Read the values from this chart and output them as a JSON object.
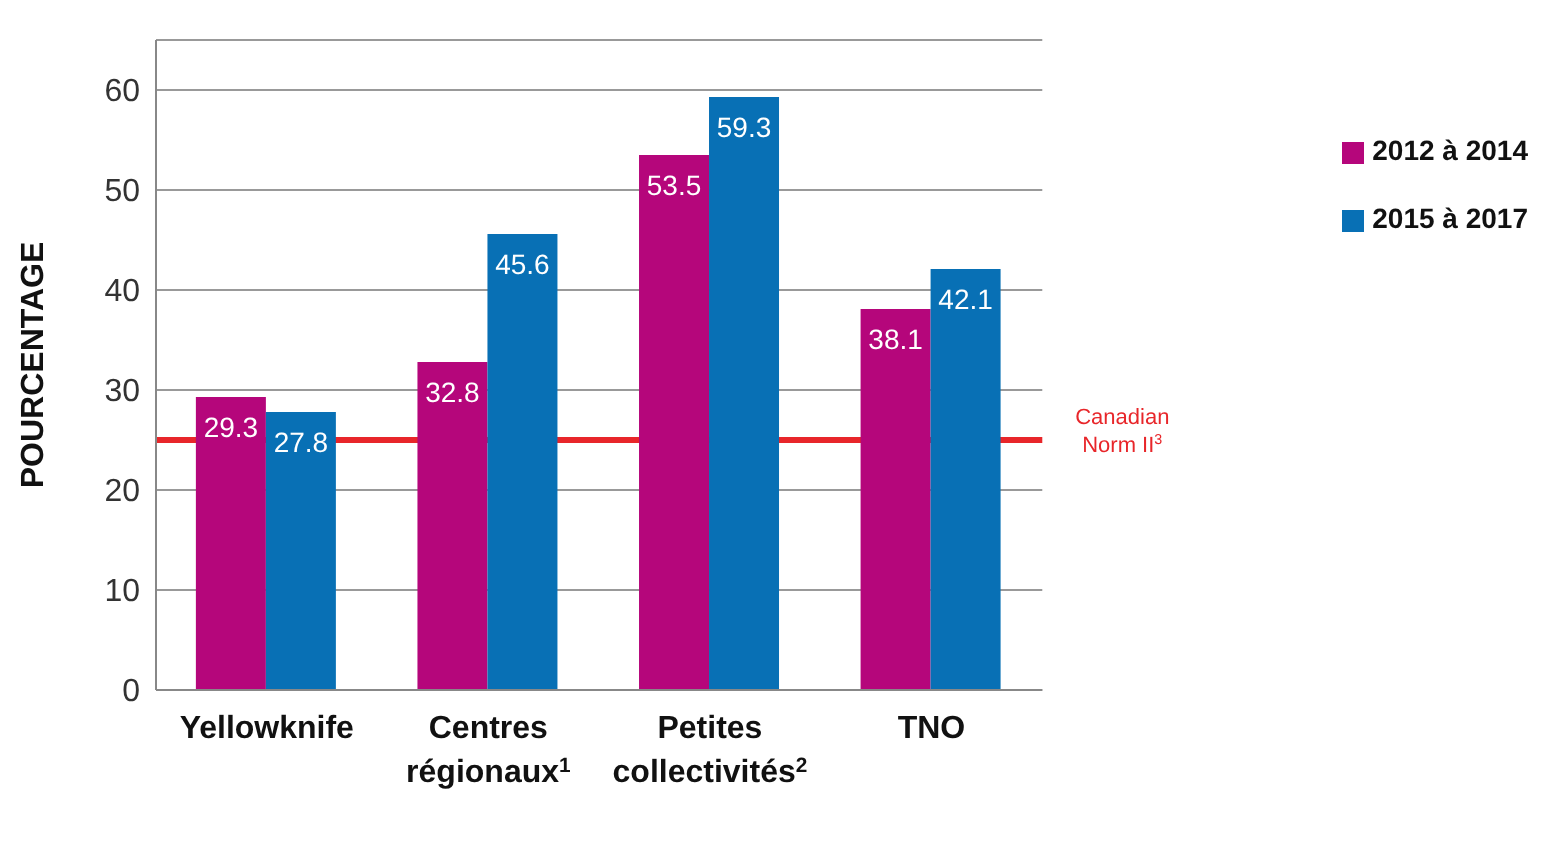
{
  "chart_data": {
    "type": "bar",
    "ylabel": "POURCENTAGE",
    "categories": [
      "Yellowknife",
      "Centres régionaux$^{1}$",
      "Petites collectivités$^{2}$",
      "TNO"
    ],
    "series": [
      {
        "name": "2012 à 2014",
        "color": "#b5067b",
        "values": [
          29.3,
          32.8,
          53.5,
          38.1
        ]
      },
      {
        "name": "2015 à 2017",
        "color": "#0870b5",
        "values": [
          27.8,
          45.6,
          59.3,
          42.1
        ]
      }
    ],
    "ylim": [
      0,
      65
    ],
    "yticks": [
      0,
      10,
      20,
      30,
      40,
      50,
      60
    ],
    "grid": "y",
    "legend": "top right",
    "data_labels": true,
    "ref_lines": [
      {
        "axis": "y",
        "value": 25,
        "label": "Canadian Norm II$^{3}$",
        "color": "#e8262a"
      }
    ]
  }
}
